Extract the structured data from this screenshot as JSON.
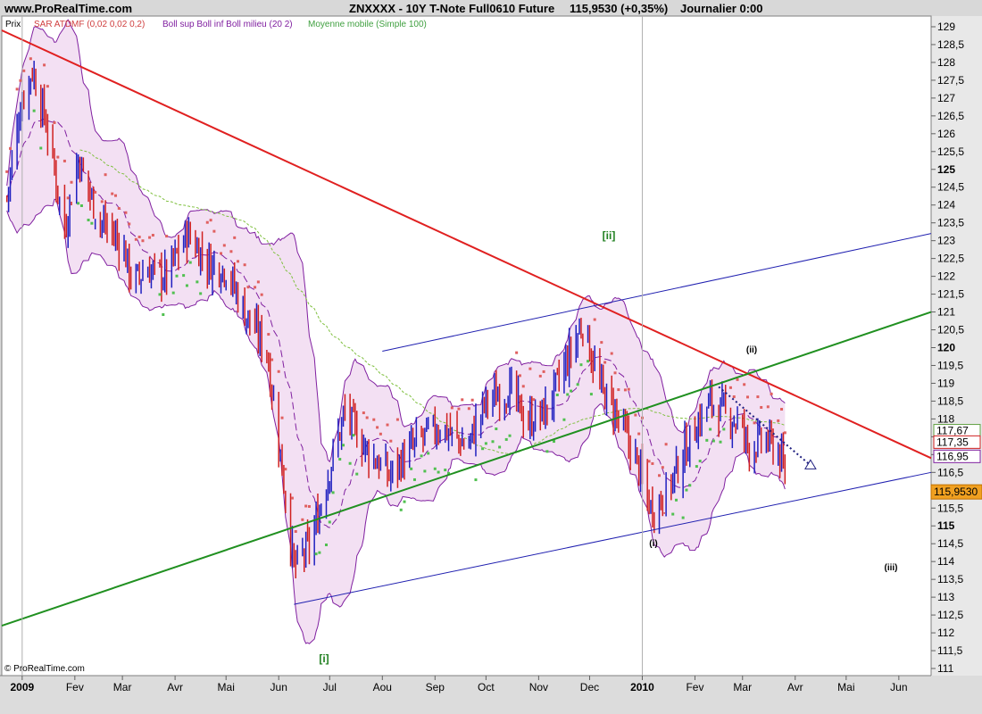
{
  "header": {
    "site": "www.ProRealTime.com",
    "instrument": "ZNXXXX - 10Y T-Note Full0610 Future",
    "last_change": "115,9530 (+0,35%)",
    "period": "Journalier  0:00"
  },
  "legend": {
    "price": "Prix",
    "sar": "SAR ATDMF (0,02 0,02 0,2)",
    "boll": "Boll sup Boll inf Boll milieu (20 2)",
    "ma": "Moyenne mobile (Simple 100)"
  },
  "copyright": "© ProRealTime.com",
  "colors": {
    "up_bar": "#2020c0",
    "down_bar": "#d02020",
    "sar_above": "#e06060",
    "sar_below": "#50c050",
    "boll_fill": "#f0d8f0",
    "boll_line": "#8020a0",
    "ma_line": "#80c040",
    "resistance": "#e02020",
    "support_green": "#209020",
    "channel_blue": "#2020b0"
  },
  "chart_data": {
    "type": "candlestick",
    "title": "ZNXXXX - 10Y T-Note Full0610 Future",
    "x_labels": [
      "2009",
      "Fev",
      "Mar",
      "Avr",
      "Mai",
      "Jun",
      "Jul",
      "Aou",
      "Sep",
      "Oct",
      "Nov",
      "Dec",
      "2010",
      "Fev",
      "Mar",
      "Avr",
      "Mai",
      "Jun"
    ],
    "y_ticks": [
      "129",
      "128,5",
      "128",
      "127,5",
      "127",
      "126,5",
      "126",
      "125,5",
      "125",
      "124,5",
      "124",
      "123,5",
      "123",
      "122,5",
      "122",
      "121,5",
      "121",
      "120,5",
      "120",
      "119,5",
      "119",
      "118,5",
      "118",
      "117,5",
      "117",
      "116,5",
      "116",
      "115,5",
      "115",
      "114,5",
      "114",
      "113,5",
      "113",
      "112,5",
      "112",
      "111,5",
      "111"
    ],
    "ylim": [
      110.8,
      129.3
    ],
    "price_path": [
      {
        "date": "2008-12-23",
        "price": 124.2
      },
      {
        "date": "2008-12-31",
        "price": 126.8
      },
      {
        "date": "2009-01-07",
        "price": 127.8
      },
      {
        "date": "2009-01-15",
        "price": 126.3
      },
      {
        "date": "2009-01-26",
        "price": 123.3
      },
      {
        "date": "2009-02-03",
        "price": 125.3
      },
      {
        "date": "2009-02-15",
        "price": 123.6
      },
      {
        "date": "2009-03-01",
        "price": 122.9
      },
      {
        "date": "2009-03-07",
        "price": 121.8
      },
      {
        "date": "2009-03-15",
        "price": 122.2
      },
      {
        "date": "2009-03-27",
        "price": 122.0
      },
      {
        "date": "2009-04-08",
        "price": 123.2
      },
      {
        "date": "2009-04-20",
        "price": 122.4
      },
      {
        "date": "2009-05-01",
        "price": 122.2
      },
      {
        "date": "2009-05-12",
        "price": 121.0
      },
      {
        "date": "2009-05-25",
        "price": 119.9
      },
      {
        "date": "2009-06-02",
        "price": 117.0
      },
      {
        "date": "2009-06-10",
        "price": 113.8
      },
      {
        "date": "2009-06-20",
        "price": 114.5
      },
      {
        "date": "2009-07-01",
        "price": 116.6
      },
      {
        "date": "2009-07-10",
        "price": 118.2
      },
      {
        "date": "2009-07-22",
        "price": 117.2
      },
      {
        "date": "2009-08-05",
        "price": 116.4
      },
      {
        "date": "2009-08-15",
        "price": 117.0
      },
      {
        "date": "2009-08-25",
        "price": 117.5
      },
      {
        "date": "2009-09-05",
        "price": 117.8
      },
      {
        "date": "2009-09-20",
        "price": 117.2
      },
      {
        "date": "2009-10-01",
        "price": 118.5
      },
      {
        "date": "2009-10-15",
        "price": 118.8
      },
      {
        "date": "2009-10-25",
        "price": 117.9
      },
      {
        "date": "2009-11-05",
        "price": 118.2
      },
      {
        "date": "2009-11-15",
        "price": 119.3
      },
      {
        "date": "2009-11-27",
        "price": 120.7
      },
      {
        "date": "2009-12-07",
        "price": 118.9
      },
      {
        "date": "2009-12-15",
        "price": 118.3
      },
      {
        "date": "2009-12-28",
        "price": 116.9
      },
      {
        "date": "2010-01-06",
        "price": 115.5
      },
      {
        "date": "2010-01-14",
        "price": 115.8
      },
      {
        "date": "2010-01-25",
        "price": 117.0
      },
      {
        "date": "2010-02-03",
        "price": 117.9
      },
      {
        "date": "2010-02-10",
        "price": 118.5
      },
      {
        "date": "2010-02-17",
        "price": 118.2
      },
      {
        "date": "2010-02-27",
        "price": 117.9
      },
      {
        "date": "2010-03-05",
        "price": 117.2
      },
      {
        "date": "2010-03-15",
        "price": 117.4
      },
      {
        "date": "2010-03-22",
        "price": 117.1
      },
      {
        "date": "2010-03-28",
        "price": 116.0
      }
    ],
    "indicators": [
      "SAR ATDMF (0,02 0,02 0,2)",
      "Bollinger Bands (20 2)",
      "Moving Average (Simple 100)"
    ],
    "price_markers": [
      {
        "label": "117,67",
        "value": 117.67,
        "color": "#60a040"
      },
      {
        "label": "117,35",
        "value": 117.35,
        "color": "#d02020"
      },
      {
        "label": "116,95",
        "value": 116.95,
        "color": "#8020a0"
      }
    ],
    "last_price": {
      "label": "115,9530",
      "value": 115.953
    },
    "annotations": [
      {
        "text": "[ii]",
        "color": "#208020"
      },
      {
        "text": "[i]",
        "color": "#208020"
      },
      {
        "text": "(ii)",
        "color": "#000000"
      },
      {
        "text": "(i)",
        "color": "#000000"
      },
      {
        "text": "(iii)",
        "color": "#000000"
      }
    ],
    "trendlines": [
      {
        "name": "resistance",
        "from": {
          "date": "2008-12-20",
          "price": 128.9
        },
        "to": {
          "date": "2010-06-20",
          "price": 116.9
        }
      },
      {
        "name": "support",
        "from": {
          "date": "2008-12-20",
          "price": 112.2
        },
        "to": {
          "date": "2010-06-20",
          "price": 121.0
        }
      },
      {
        "name": "channel-lower",
        "from": {
          "date": "2009-06-10",
          "price": 112.8
        },
        "to": {
          "date": "2010-06-20",
          "price": 116.5
        }
      },
      {
        "name": "channel-upper",
        "from": {
          "date": "2009-08-01",
          "price": 119.9
        },
        "to": {
          "date": "2010-06-20",
          "price": 123.2
        }
      },
      {
        "name": "projection",
        "from": {
          "date": "2010-02-15",
          "price": 118.9
        },
        "to": {
          "date": "2010-04-10",
          "price": 116.7
        }
      }
    ],
    "grid": false
  }
}
